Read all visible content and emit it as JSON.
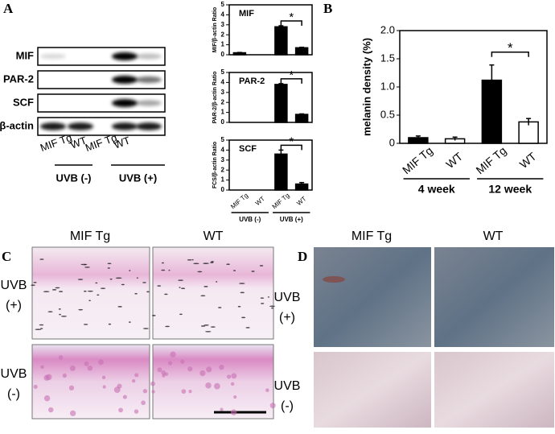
{
  "chart_data": [
    {
      "type": "bar",
      "title": "MIF",
      "ylabel": "MIF/β-actin Ratio",
      "values": [
        0.2,
        0,
        2.8,
        0.7
      ],
      "errors": [
        0.03,
        0,
        0.1,
        0.05
      ],
      "color": "#000000",
      "ylim": [
        0,
        5
      ],
      "yticks": [
        0,
        1,
        2,
        3,
        4,
        5
      ],
      "annotation": "*"
    },
    {
      "type": "bar",
      "title": "PAR-2",
      "ylabel": "PAR-2/β-actin Ratio",
      "values": [
        0,
        0,
        3.8,
        0.8
      ],
      "errors": [
        0,
        0,
        0.08,
        0.05
      ],
      "color": "#000000",
      "ylim": [
        0,
        5
      ],
      "yticks": [
        0,
        1,
        2,
        3,
        4,
        5
      ],
      "annotation": "*"
    },
    {
      "type": "bar",
      "title": "SCF",
      "ylabel": "FCS/β-actin Ratio",
      "categories": [
        "MIF Tg",
        "WT",
        "MIF Tg",
        "WT"
      ],
      "groups": [
        "UVB (-)",
        "UVB (+)"
      ],
      "values": [
        0,
        0,
        3.6,
        0.6
      ],
      "errors": [
        0,
        0,
        0.4,
        0.15
      ],
      "color": "#000000",
      "ylim": [
        0,
        5
      ],
      "yticks": [
        0,
        1,
        2,
        3,
        4,
        5
      ],
      "annotation": "*"
    },
    {
      "type": "bar",
      "label": "B",
      "ylabel": "melanin density (%)",
      "categories": [
        "MIF Tg",
        "WT",
        "MIF Tg",
        "WT"
      ],
      "groups": [
        "4 week",
        "12 week"
      ],
      "values": [
        0.1,
        0.08,
        1.12,
        0.38
      ],
      "errors": [
        0.03,
        0.03,
        0.27,
        0.06
      ],
      "colors": [
        "#000000",
        "#ffffff",
        "#000000",
        "#ffffff"
      ],
      "ylim": [
        0,
        2
      ],
      "yticks": [
        0,
        0.5,
        {
          "value": 1,
          "label": "1.0"
        },
        1.5,
        {
          "value": 2,
          "label": "2.0"
        }
      ],
      "annotation": "*"
    }
  ],
  "panel_a": {
    "label": "A",
    "rows": [
      "MIF",
      "PAR-2",
      "SCF",
      "β-actin"
    ],
    "lanes": [
      "MIF Tg",
      "WT",
      "MIF Tg",
      "WT"
    ],
    "groups": [
      "UVB (-)",
      "UVB (+)"
    ]
  },
  "panel_c": {
    "label": "C",
    "columns": [
      "MIF Tg",
      "WT"
    ],
    "rows": [
      [
        "UVB",
        "(+)"
      ],
      [
        "UVB",
        "(-)"
      ]
    ]
  },
  "panel_d": {
    "label": "D",
    "columns": [
      "MIF Tg",
      "WT"
    ],
    "rows": [
      [
        "UVB",
        "(+)"
      ],
      [
        "UVB",
        "(-)"
      ]
    ]
  }
}
